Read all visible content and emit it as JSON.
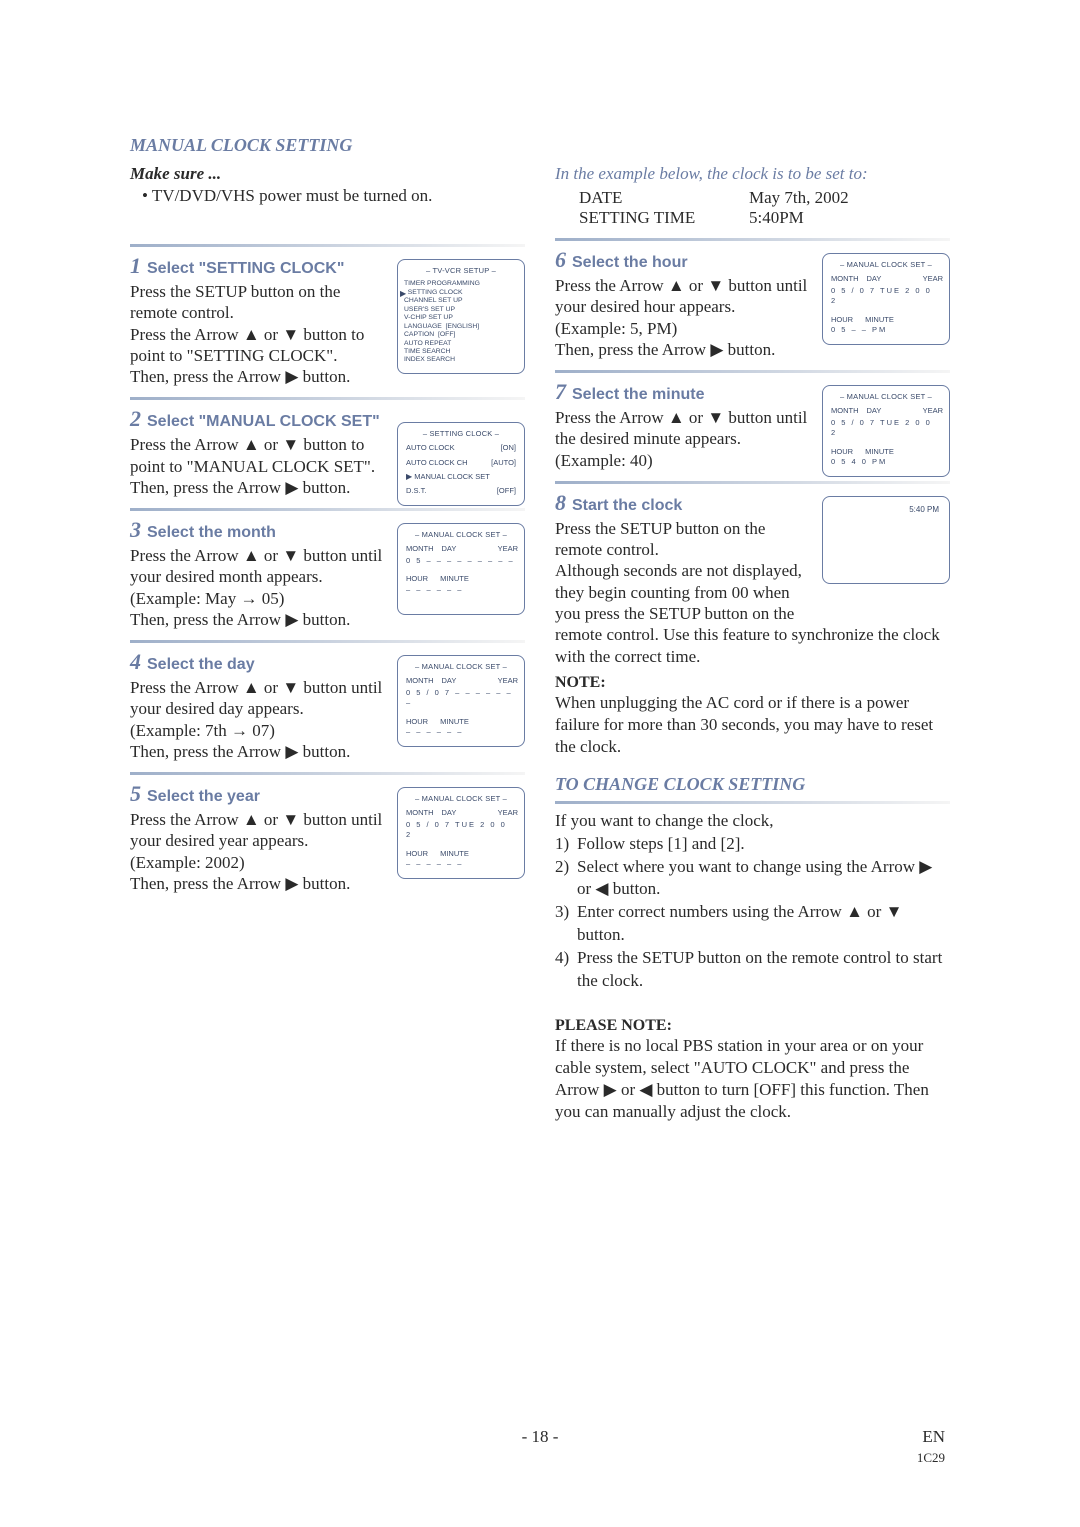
{
  "title": "MANUAL CLOCK SETTING",
  "make_sure_label": "Make sure ...",
  "make_sure_bullet": "TV/DVD/VHS power must be turned on.",
  "example_intro": "In the example below, the clock is to be set to:",
  "example": {
    "date_label": "DATE",
    "date_value": "May 7th, 2002",
    "time_label": "SETTING TIME",
    "time_value": "5:40PM"
  },
  "arrows": {
    "up": "▲",
    "down": "▼",
    "right": "▶",
    "left": "◀"
  },
  "steps": {
    "s1": {
      "num": "1",
      "title": "Select \"SETTING CLOCK\"",
      "body": "Press the SETUP button on the remote control.\nPress the Arrow ▲ or ▼ button to point to \"SETTING CLOCK\".\nThen, press the Arrow ▶ button.",
      "osd_title": "– TV-VCR SETUP –",
      "osd_lines": [
        "TIMER PROGRAMMING",
        "SETTING CLOCK",
        "CHANNEL SET UP",
        "USER'S SET UP",
        "V-CHIP SET UP",
        "LANGUAGE  [ENGLISH]",
        "CAPTION  [OFF]",
        "AUTO REPEAT",
        "TIME SEARCH",
        "INDEX SEARCH"
      ],
      "osd_selected_index": 1
    },
    "s2": {
      "num": "2",
      "title": "Select \"MANUAL CLOCK SET\"",
      "body": "Press the Arrow ▲ or ▼ button to point to \"MANUAL CLOCK SET\".\nThen, press the Arrow ▶ button.",
      "osd_title": "– SETTING CLOCK –",
      "osd_rows": [
        {
          "l": "AUTO CLOCK",
          "r": "[ON]"
        },
        {
          "l": "AUTO CLOCK CH",
          "r": "[AUTO]"
        },
        {
          "l": "MANUAL CLOCK SET",
          "r": ""
        },
        {
          "l": "D.S.T.",
          "r": "[OFF]"
        }
      ],
      "osd_selected_index": 2
    },
    "s3": {
      "num": "3",
      "title": "Select the month",
      "body": "Press the Arrow ▲ or ▼ button until your desired month appears.\n(Example: May → 05)\nThen, press the Arrow ▶ button.",
      "osd_title": "– MANUAL CLOCK SET –",
      "hdr": [
        "MONTH",
        "DAY",
        "",
        "YEAR"
      ],
      "row1": "0 5   – –   – – –   – – – –",
      "hm": [
        "HOUR",
        "MINUTE"
      ],
      "row2": "– –    – –  – –"
    },
    "s4": {
      "num": "4",
      "title": "Select the day",
      "body": "Press the Arrow ▲ or ▼ button until your desired day appears.\n(Example: 7th → 07)\nThen, press the Arrow ▶ button.",
      "osd_title": "– MANUAL CLOCK SET –",
      "hdr": [
        "MONTH",
        "DAY",
        "",
        "YEAR"
      ],
      "row1": "0 5  /  0 7   – – –   – – – –",
      "hm": [
        "HOUR",
        "MINUTE"
      ],
      "row2": "– –    – –  – –"
    },
    "s5": {
      "num": "5",
      "title": "Select the year",
      "body": "Press the Arrow ▲ or ▼ button until your desired year appears.\n(Example: 2002)\nThen, press the Arrow ▶ button.",
      "osd_title": "– MANUAL CLOCK SET –",
      "hdr": [
        "MONTH",
        "DAY",
        "",
        "YEAR"
      ],
      "row1": "0 5  /  0 7  TUE   2 0 0 2",
      "hm": [
        "HOUR",
        "MINUTE"
      ],
      "row2": "– –    – –  – –"
    },
    "s6": {
      "num": "6",
      "title": "Select the hour",
      "body": "Press the Arrow ▲ or ▼ button until your desired hour appears.\n(Example: 5, PM)\nThen, press the Arrow ▶ button.",
      "osd_title": "– MANUAL CLOCK SET –",
      "hdr": [
        "MONTH",
        "DAY",
        "",
        "YEAR"
      ],
      "row1": "0 5  /  0 7  TUE   2 0 0 2",
      "hm": [
        "HOUR",
        "MINUTE"
      ],
      "row2": "0 5    – –  PM"
    },
    "s7": {
      "num": "7",
      "title": "Select the minute",
      "body": "Press the Arrow ▲ or ▼ button until the desired minute appears.\n(Example: 40)",
      "osd_title": "– MANUAL CLOCK SET –",
      "hdr": [
        "MONTH",
        "DAY",
        "",
        "YEAR"
      ],
      "row1": "0 5  /  0 7  TUE   2 0 0 2",
      "hm": [
        "HOUR",
        "MINUTE"
      ],
      "row2": "0 5    4 0  PM"
    },
    "s8": {
      "num": "8",
      "title": "Start the clock",
      "body1": "Press the SETUP button on the remote control.\nAlthough seconds are not displayed, they begin counting from 00 when you press the SETUP button on the",
      "body2": "remote control. Use this feature to synchronize the clock with the correct time.",
      "osd_text": "5:40 PM"
    }
  },
  "note_label": "NOTE:",
  "note_body": "When unplugging the AC cord or if there is a power failure for more than 30 seconds, you may have to reset the clock.",
  "change_title": "TO CHANGE CLOCK SETTING",
  "change_intro": "If you want to change the clock,",
  "change_items": [
    "Follow steps [1] and [2].",
    "Select where you want to change using the Arrow ▶ or ◀ button.",
    "Enter correct numbers using the Arrow ▲ or ▼ button.",
    "Press the SETUP button on the remote control to start the clock."
  ],
  "please_note_label": "PLEASE NOTE:",
  "please_note_body": "If there is no local PBS station in your area or on your cable system, select \"AUTO CLOCK\" and press the Arrow ▶ or ◀ button to turn [OFF] this function. Then you can manually adjust the clock.",
  "footer": {
    "page": "- 18 -",
    "en": "EN",
    "code": "1C29"
  },
  "colors": {
    "accent": "#6a7ca3",
    "text": "#2a2a2a",
    "grad_from": "#9eafc9",
    "grad_to": "#f5f5f5"
  }
}
